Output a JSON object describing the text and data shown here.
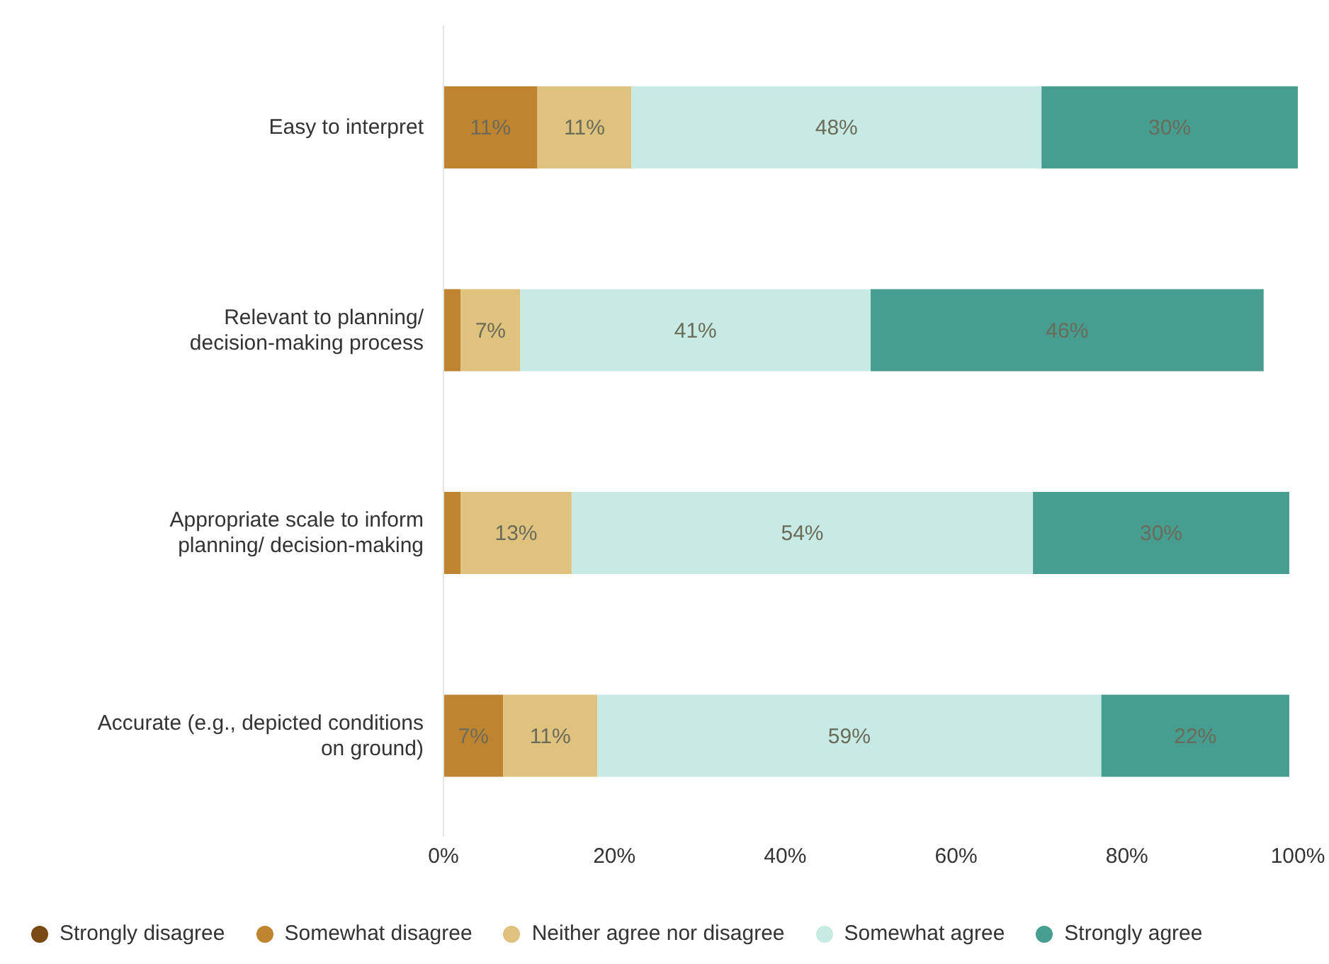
{
  "chart_data": {
    "type": "bar",
    "orientation": "horizontal",
    "stacked": true,
    "categories": [
      "Easy to interpret",
      "Relevant to planning/ decision-making process",
      "Appropriate scale to inform planning/ decision-making",
      "Accurate (e.g., depicted conditions on ground)"
    ],
    "series": [
      {
        "name": "Strongly disagree",
        "color": "#7a4a14",
        "values": [
          null,
          null,
          null,
          null
        ],
        "value_labels": [
          null,
          null,
          null,
          null
        ]
      },
      {
        "name": "Somewhat disagree",
        "color": "#bf8430",
        "values": [
          11,
          2,
          2,
          7
        ],
        "value_labels": [
          "11%",
          null,
          null,
          "7%"
        ]
      },
      {
        "name": "Neither agree nor disagree",
        "color": "#dfc27d",
        "values": [
          11,
          7,
          13,
          11
        ],
        "value_labels": [
          "11%",
          "7%",
          "13%",
          "11%"
        ]
      },
      {
        "name": "Somewhat agree",
        "color": "#c7eae5",
        "values": [
          48,
          41,
          54,
          59
        ],
        "value_labels": [
          "48%",
          "41%",
          "54%",
          "59%"
        ]
      },
      {
        "name": "Strongly agree",
        "color": "#469d90",
        "values": [
          30,
          46,
          30,
          22
        ],
        "value_labels": [
          "30%",
          "46%",
          "30%",
          "22%"
        ]
      }
    ],
    "xlim": [
      0,
      100
    ],
    "xticks": [
      {
        "value": 0,
        "label": "0%"
      },
      {
        "value": 20,
        "label": "20%"
      },
      {
        "value": 40,
        "label": "40%"
      },
      {
        "value": 60,
        "label": "60%"
      },
      {
        "value": 80,
        "label": "80%"
      },
      {
        "value": 100,
        "label": "100%"
      }
    ],
    "grid": false,
    "legend": "bottom"
  }
}
